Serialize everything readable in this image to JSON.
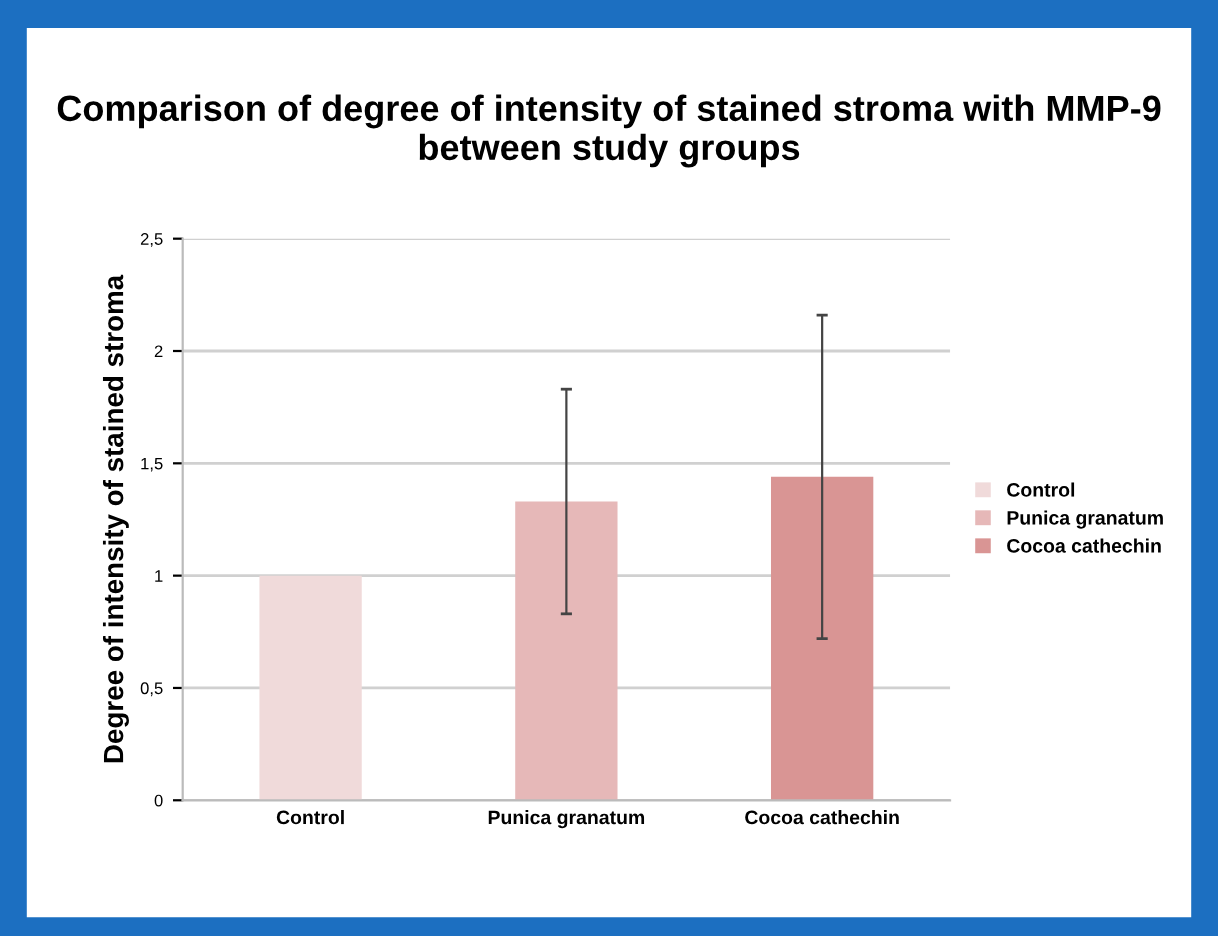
{
  "chart_data": {
    "type": "bar",
    "title": "Comparison of degree of intensity of stained stroma with MMP-9 between study groups",
    "ylabel": "Degree of intensity of stained stroma",
    "categories": [
      "Control",
      "Punica granatum",
      "Cocoa cathechin"
    ],
    "series": [
      {
        "name": "Control",
        "color": "#f0dada",
        "values": [
          1.0,
          null,
          null
        ],
        "errors": [
          null,
          null,
          null
        ]
      },
      {
        "name": "Punica granatum",
        "color": "#e6b8b8",
        "values": [
          null,
          1.33,
          null
        ],
        "errors": [
          null,
          0.5,
          null
        ]
      },
      {
        "name": "Cocoa cathechin",
        "color": "#d99594",
        "values": [
          null,
          null,
          1.44
        ],
        "errors": [
          null,
          null,
          0.72
        ]
      }
    ],
    "ylim": [
      0,
      2.5
    ],
    "yticks": [
      0,
      {
        "value": 0.5,
        "label": "0,5"
      },
      1,
      {
        "value": 1.5,
        "label": "1,5"
      },
      2,
      {
        "value": 2.5,
        "label": "2,5"
      }
    ],
    "grid": "y",
    "legend": "right"
  }
}
